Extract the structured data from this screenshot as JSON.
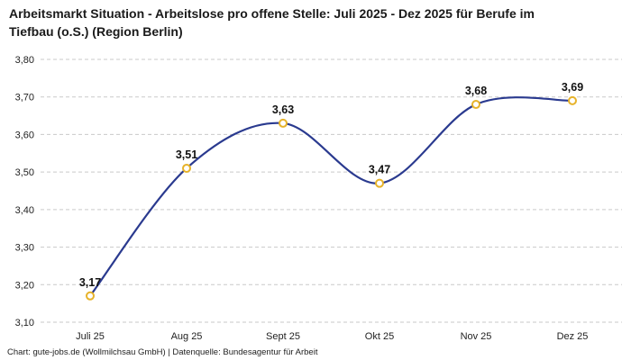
{
  "header": {
    "title": "Arbeitsmarkt Situation - Arbeitslose pro offene Stelle: Juli 2025 - Dez 2025 für Berufe im Tiefbau (o.S.) (Region Berlin)"
  },
  "footer": {
    "text": "Chart: gute-jobs.de (Wollmilchsau GmbH) | Datenquelle: Bundesagentur für Arbeit"
  },
  "chart_data": {
    "type": "line",
    "title": "Arbeitsmarkt Situation - Arbeitslose pro offene Stelle: Juli 2025 - Dez 2025 für Berufe im Tiefbau (o.S.) (Region Berlin)",
    "categories": [
      "Juli 25",
      "Aug 25",
      "Sept 25",
      "Okt 25",
      "Nov 25",
      "Dez 25"
    ],
    "values": [
      3.17,
      3.51,
      3.63,
      3.47,
      3.68,
      3.69
    ],
    "value_labels": [
      "3,17",
      "3,51",
      "3,63",
      "3,47",
      "3,68",
      "3,69"
    ],
    "ylim": [
      3.1,
      3.8
    ],
    "ytick_step": 0.1,
    "ytick_labels": [
      "3,10",
      "3,20",
      "3,30",
      "3,40",
      "3,50",
      "3,60",
      "3,70",
      "3,80"
    ],
    "xlabel": "",
    "ylabel": "",
    "grid": "dashed-horizontal",
    "legend": "none",
    "line_color": "#2a3a8f",
    "marker_stroke": "#e7b32a",
    "marker_fill": "#ffffff",
    "grid_color": "#c9c9c9"
  }
}
